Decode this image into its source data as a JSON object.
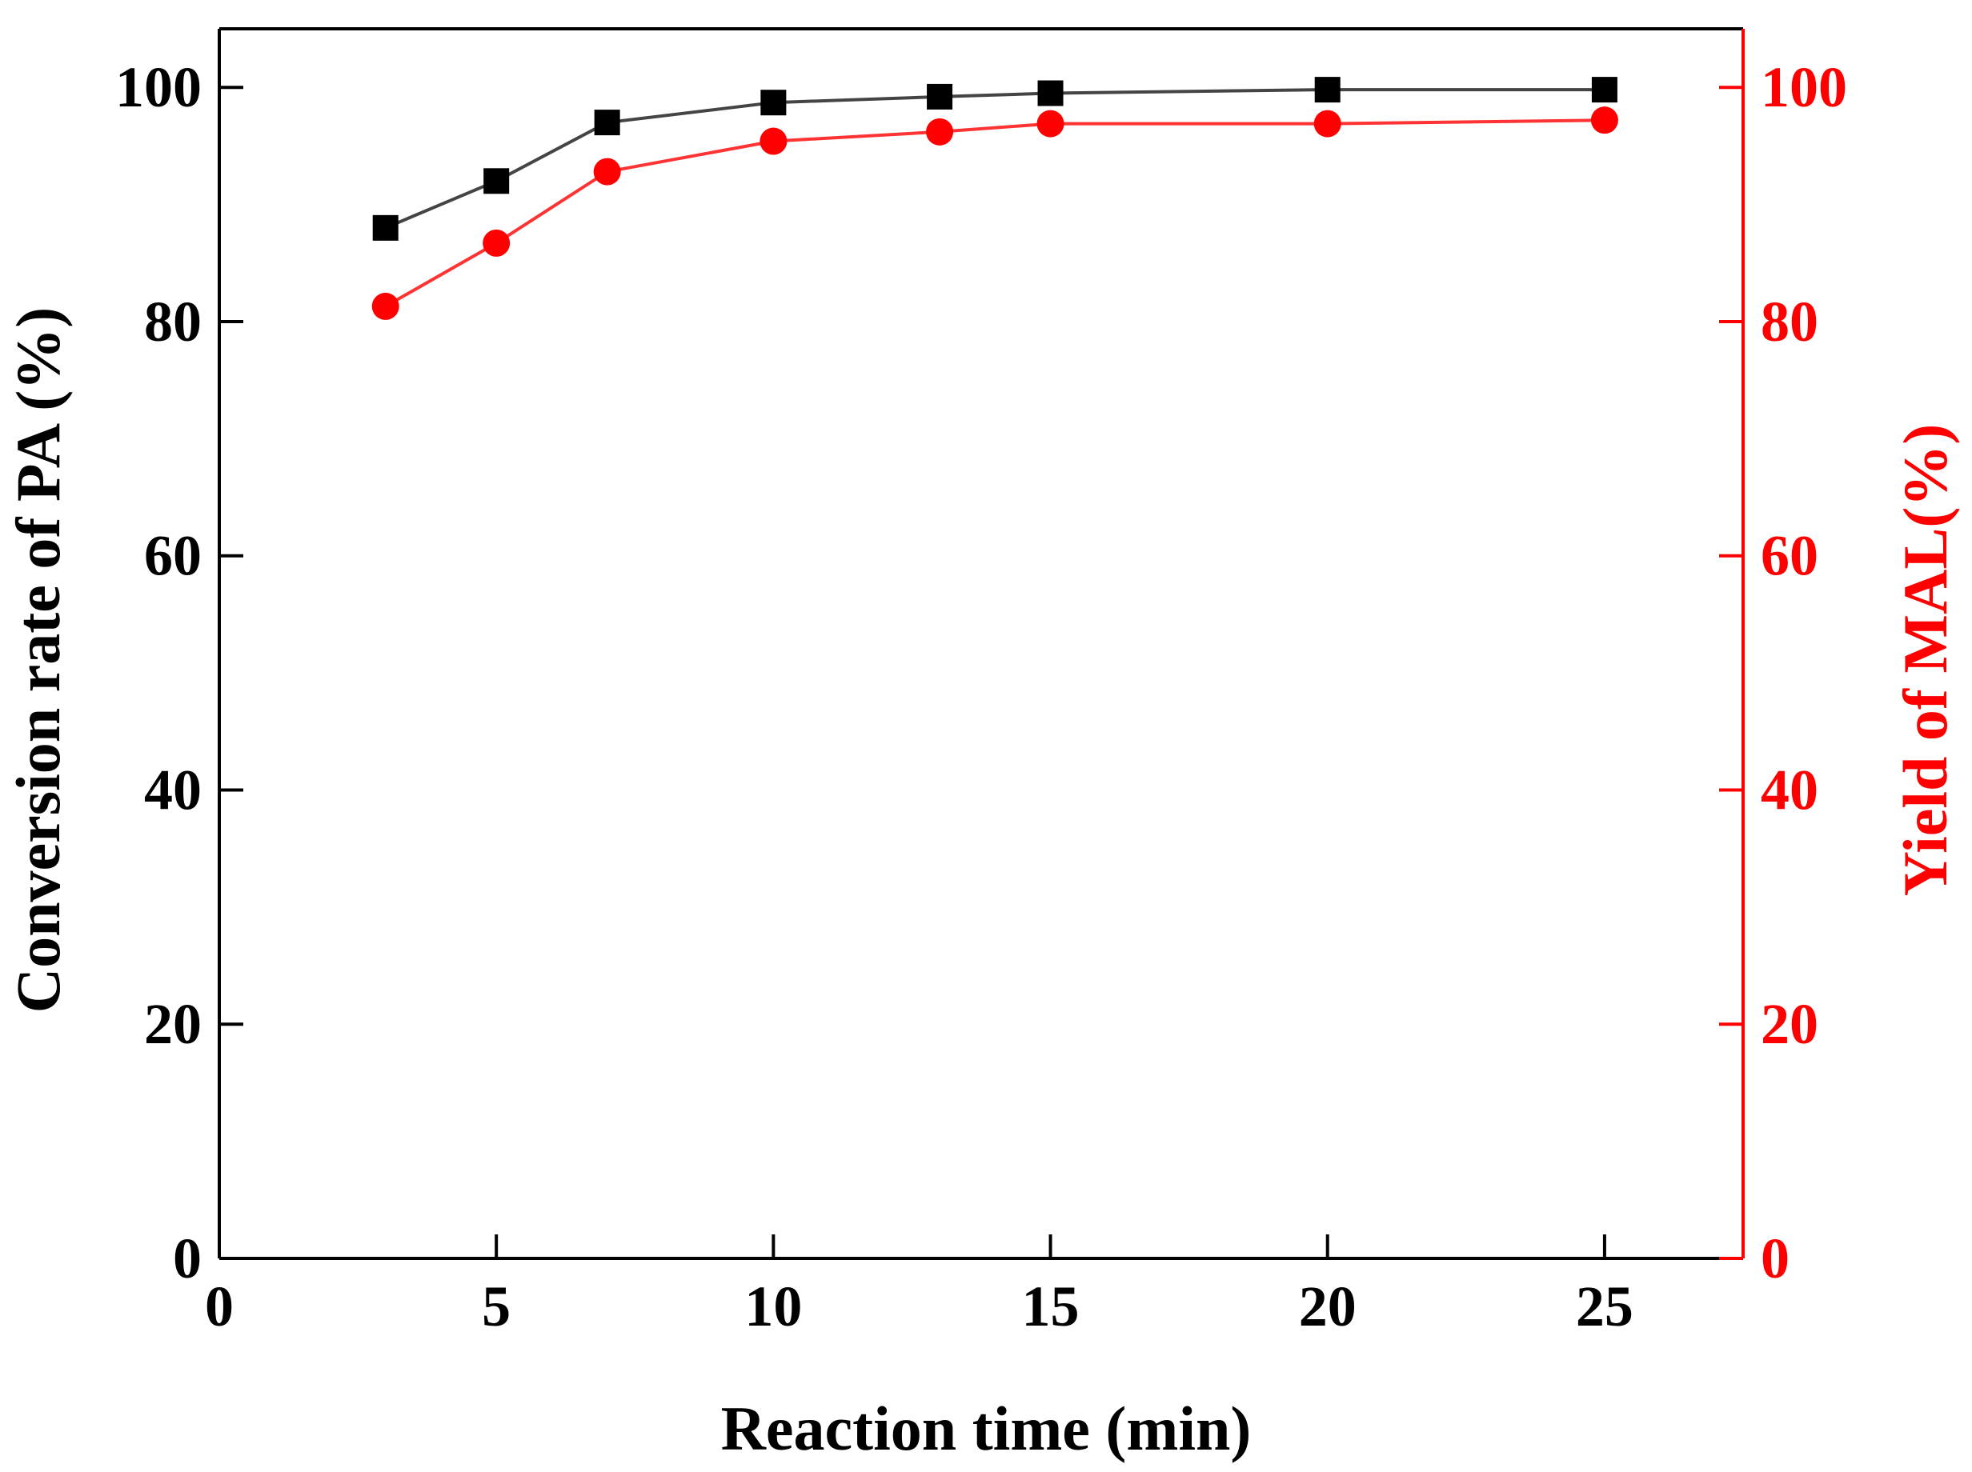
{
  "chart_data": {
    "type": "line",
    "title": "",
    "xlabel": "Reaction time (min)",
    "ylabel_left": "Conversion rate of PA (%)",
    "ylabel_right": "Yield of MAL(%)",
    "xlim": [
      0,
      27.5
    ],
    "ylim": [
      0,
      105
    ],
    "x_ticks": [
      0,
      5,
      10,
      15,
      20,
      25
    ],
    "x_tick_labels": [
      "0",
      "5",
      "10",
      "15",
      "20",
      "25"
    ],
    "y_ticks": [
      0,
      20,
      40,
      60,
      80,
      100
    ],
    "y_tick_labels": [
      "0",
      "20",
      "40",
      "60",
      "80",
      "100"
    ],
    "grid": false,
    "legend": "none",
    "colors": {
      "left_axis": "#000000",
      "right_axis": "#ff0000",
      "line_left": "#444444",
      "line_right": "#ff3333"
    },
    "series": [
      {
        "name": "Conversion rate of PA",
        "axis": "left",
        "marker": "square",
        "color": "#000000",
        "x": [
          3,
          5,
          7,
          10,
          13,
          15,
          20,
          25
        ],
        "values": [
          88.0,
          92.0,
          97.0,
          98.7,
          99.2,
          99.5,
          99.8,
          99.8
        ]
      },
      {
        "name": "Yield of MAL",
        "axis": "right",
        "marker": "circle",
        "color": "#ff0000",
        "x": [
          3,
          5,
          7,
          10,
          13,
          15,
          20,
          25
        ],
        "values": [
          81.3,
          86.7,
          92.8,
          95.4,
          96.2,
          96.9,
          96.9,
          97.2
        ]
      }
    ]
  }
}
